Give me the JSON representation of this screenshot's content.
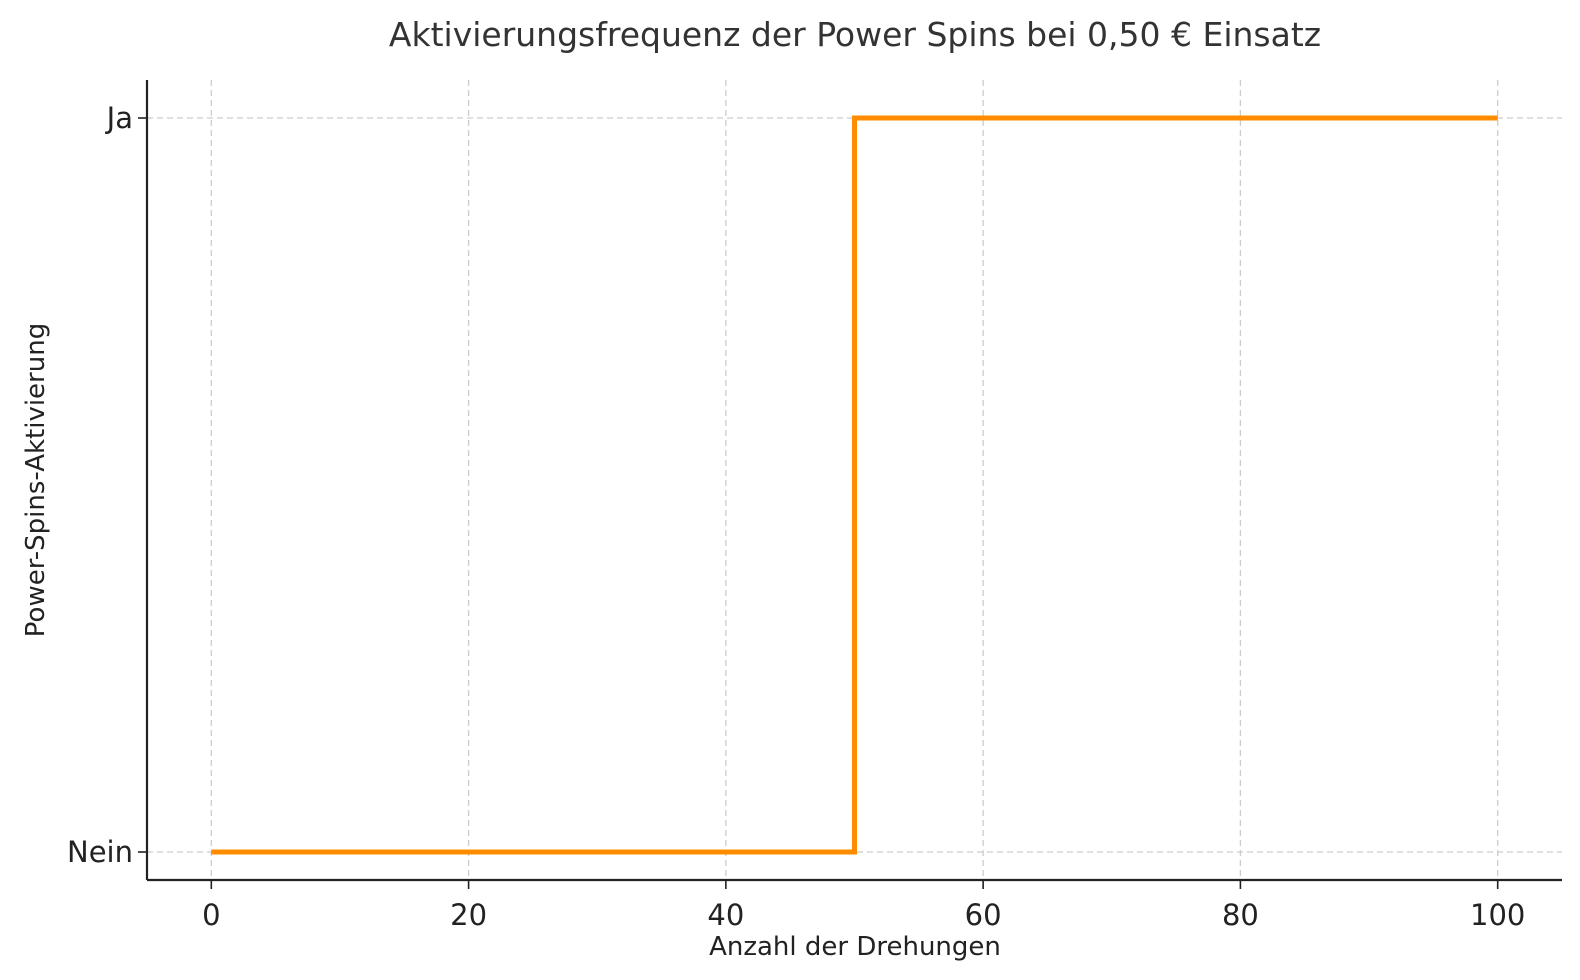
{
  "chart_data": {
    "type": "line",
    "step": true,
    "title": "Aktivierungsfrequenz der Power Spins bei 0,50 € Einsatz",
    "xlabel": "Anzahl der Drehungen",
    "ylabel": "Power-Spins-Aktivierung",
    "xlim": [
      -5,
      105
    ],
    "x_ticks": [
      0,
      20,
      40,
      60,
      80,
      100
    ],
    "y_categories": [
      "Nein",
      "Ja"
    ],
    "grid": true,
    "series": [
      {
        "color": "#ff8c00",
        "points": [
          {
            "x": 0,
            "y": "Nein"
          },
          {
            "x": 50,
            "y": "Nein"
          },
          {
            "x": 50,
            "y": "Ja"
          },
          {
            "x": 100,
            "y": "Ja"
          }
        ]
      }
    ]
  }
}
